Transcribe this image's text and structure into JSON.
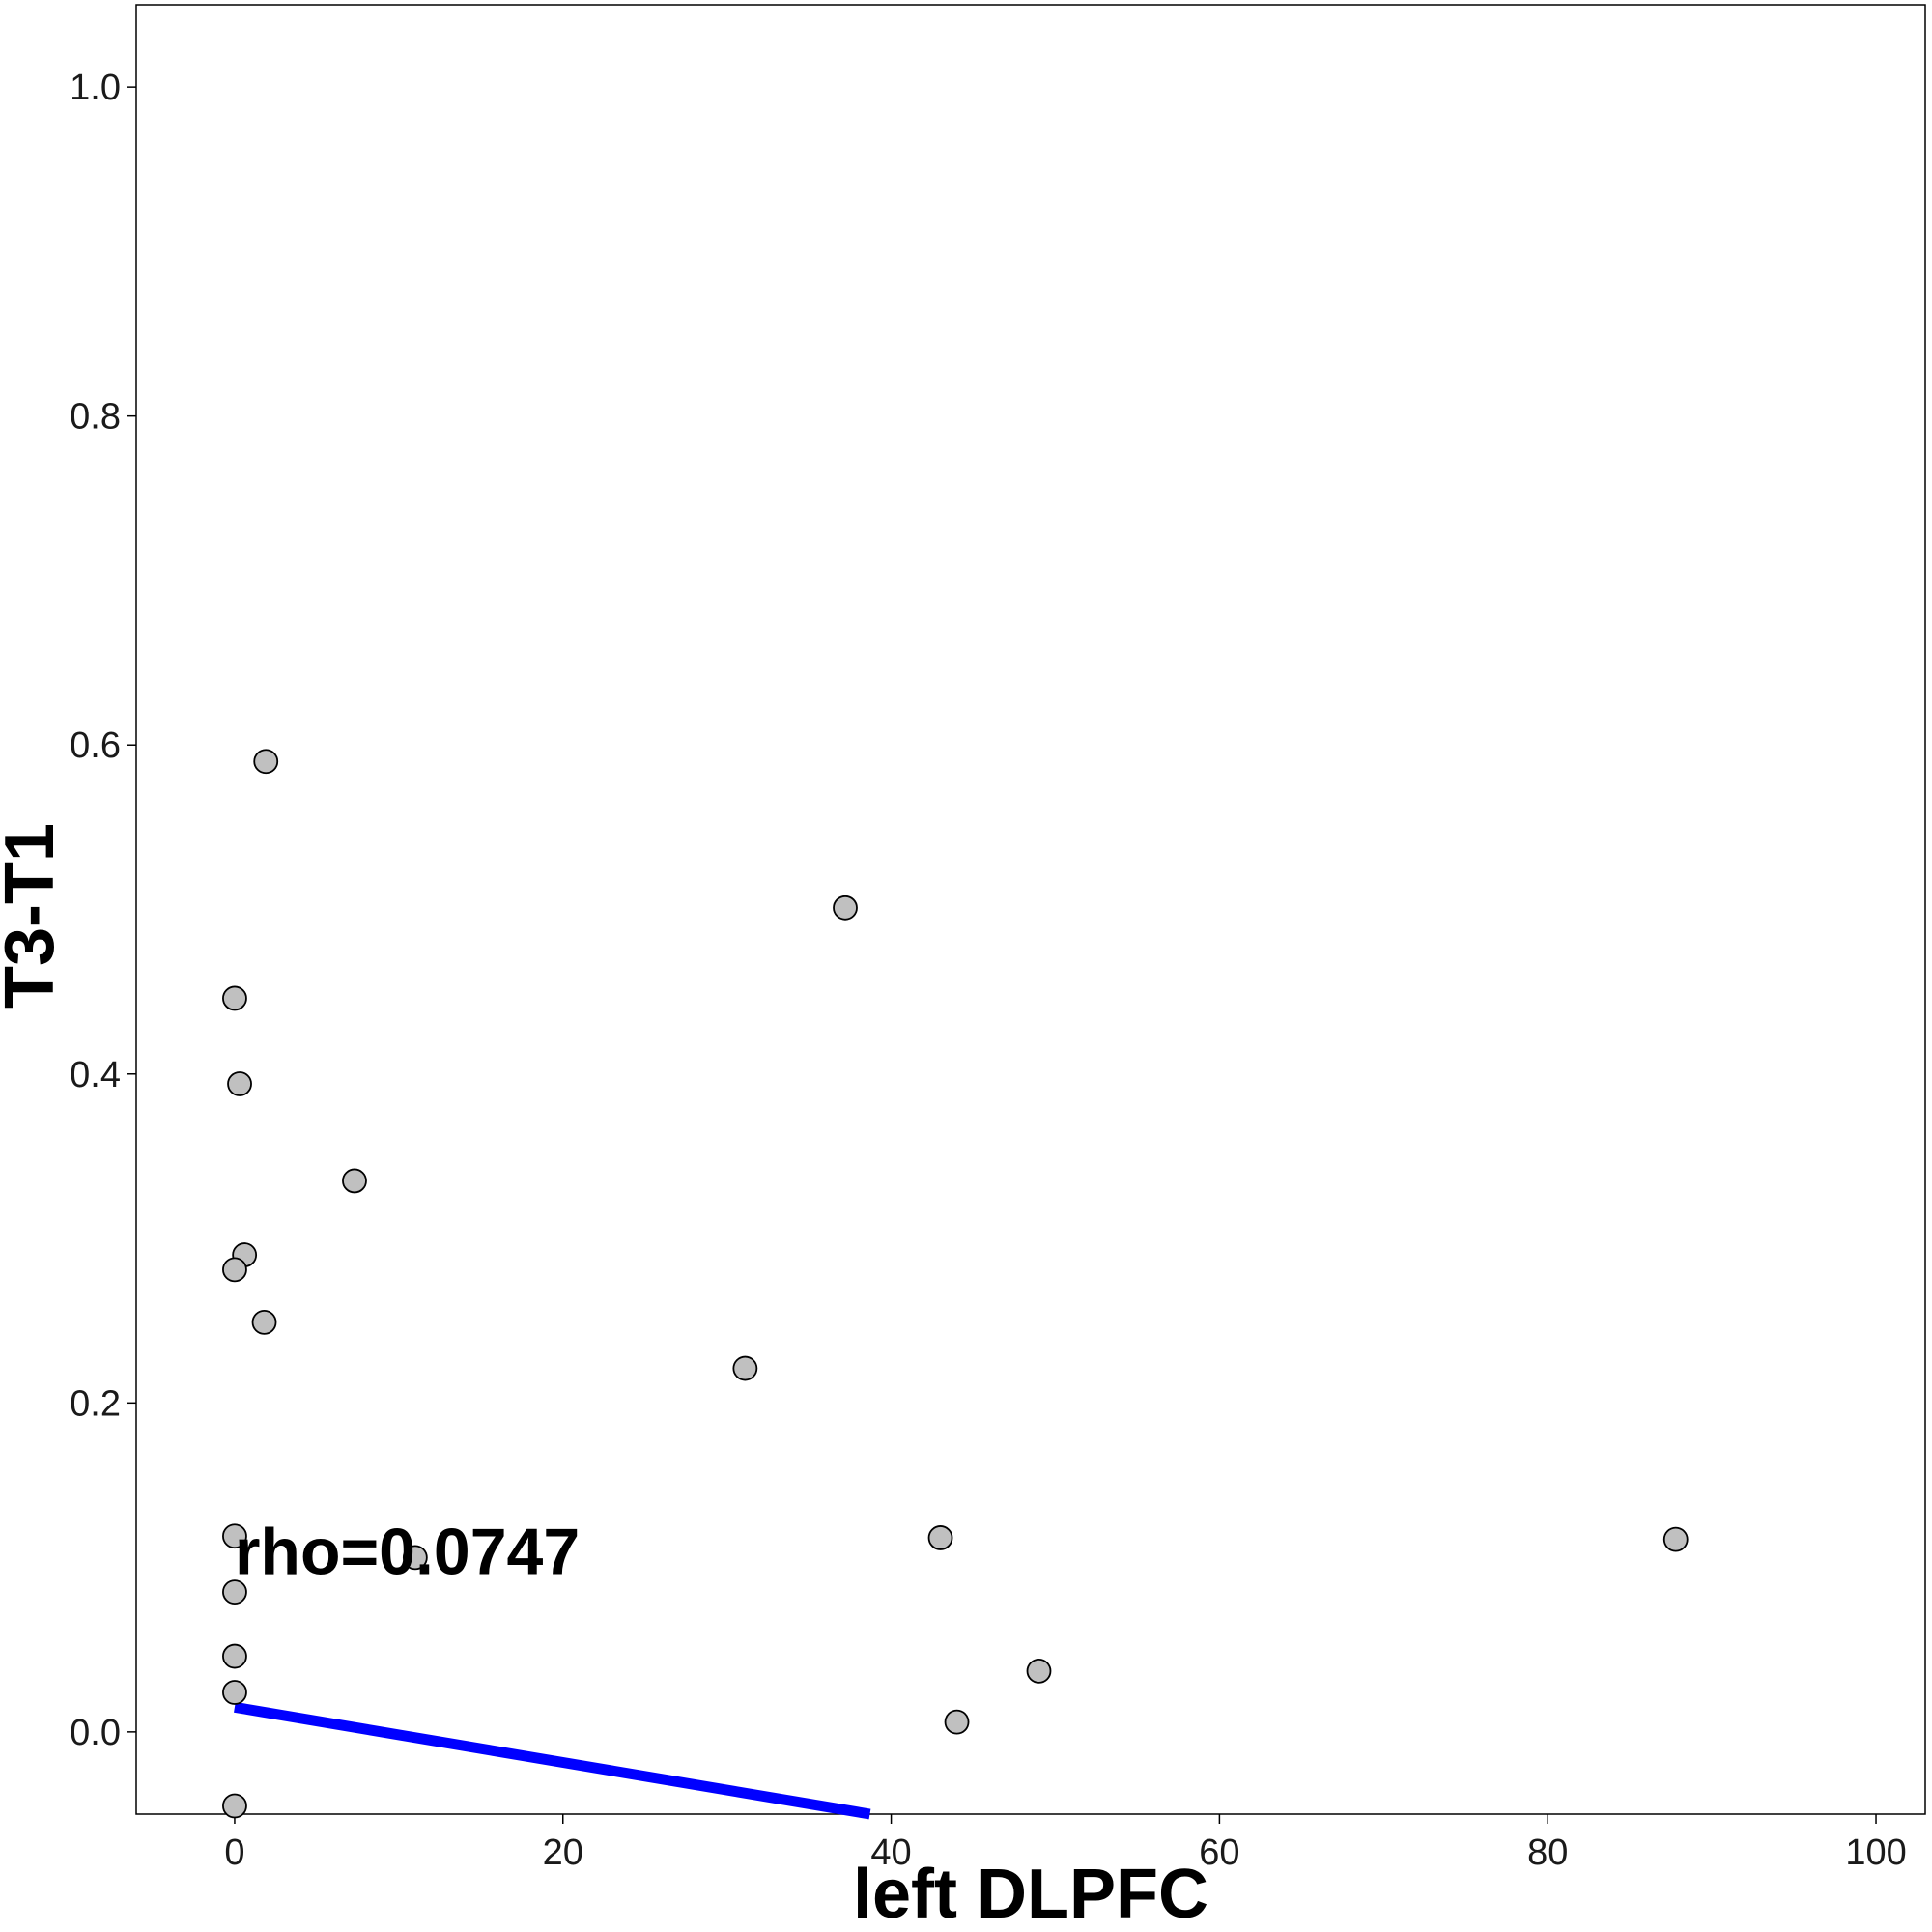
{
  "chart_data": {
    "type": "scatter",
    "title": "",
    "xlabel": "left DLPFC",
    "ylabel": "T3-T1",
    "xlim": [
      -6,
      103
    ],
    "ylim": [
      -0.05,
      1.05
    ],
    "x_ticks": [
      0,
      20,
      40,
      60,
      80,
      100
    ],
    "y_ticks": [
      0.0,
      0.2,
      0.4,
      0.6,
      0.8,
      1.0
    ],
    "x_tick_labels": [
      "0",
      "20",
      "40",
      "60",
      "80",
      "100"
    ],
    "y_tick_labels": [
      "0.0",
      "0.2",
      "0.4",
      "0.6",
      "0.8",
      "1.0"
    ],
    "grid": false,
    "points": [
      {
        "x": 1.9,
        "y": 0.59
      },
      {
        "x": 37.2,
        "y": 0.501
      },
      {
        "x": 0.0,
        "y": 0.446
      },
      {
        "x": 0.3,
        "y": 0.394
      },
      {
        "x": 7.3,
        "y": 0.335
      },
      {
        "x": 0.6,
        "y": 0.29
      },
      {
        "x": 0.0,
        "y": 0.281
      },
      {
        "x": 1.8,
        "y": 0.249
      },
      {
        "x": 31.1,
        "y": 0.221
      },
      {
        "x": 0.0,
        "y": 0.119
      },
      {
        "x": 43.0,
        "y": 0.118
      },
      {
        "x": 87.8,
        "y": 0.117
      },
      {
        "x": 11.0,
        "y": 0.106
      },
      {
        "x": 0.0,
        "y": 0.085
      },
      {
        "x": 0.0,
        "y": 0.046
      },
      {
        "x": 49.0,
        "y": 0.037
      },
      {
        "x": 0.0,
        "y": 0.024
      },
      {
        "x": 44.0,
        "y": 0.006
      },
      {
        "x": 0.0,
        "y": -0.045
      }
    ],
    "fit_line": {
      "x": [
        0,
        38.7
      ],
      "y": [
        0.015,
        -0.05
      ],
      "color": "#0000ff"
    },
    "point_fill": "#c0c0c0",
    "point_stroke": "#000000",
    "annotation": {
      "text": "rho=0.0747",
      "x": 0.0,
      "y": 0.11
    }
  }
}
